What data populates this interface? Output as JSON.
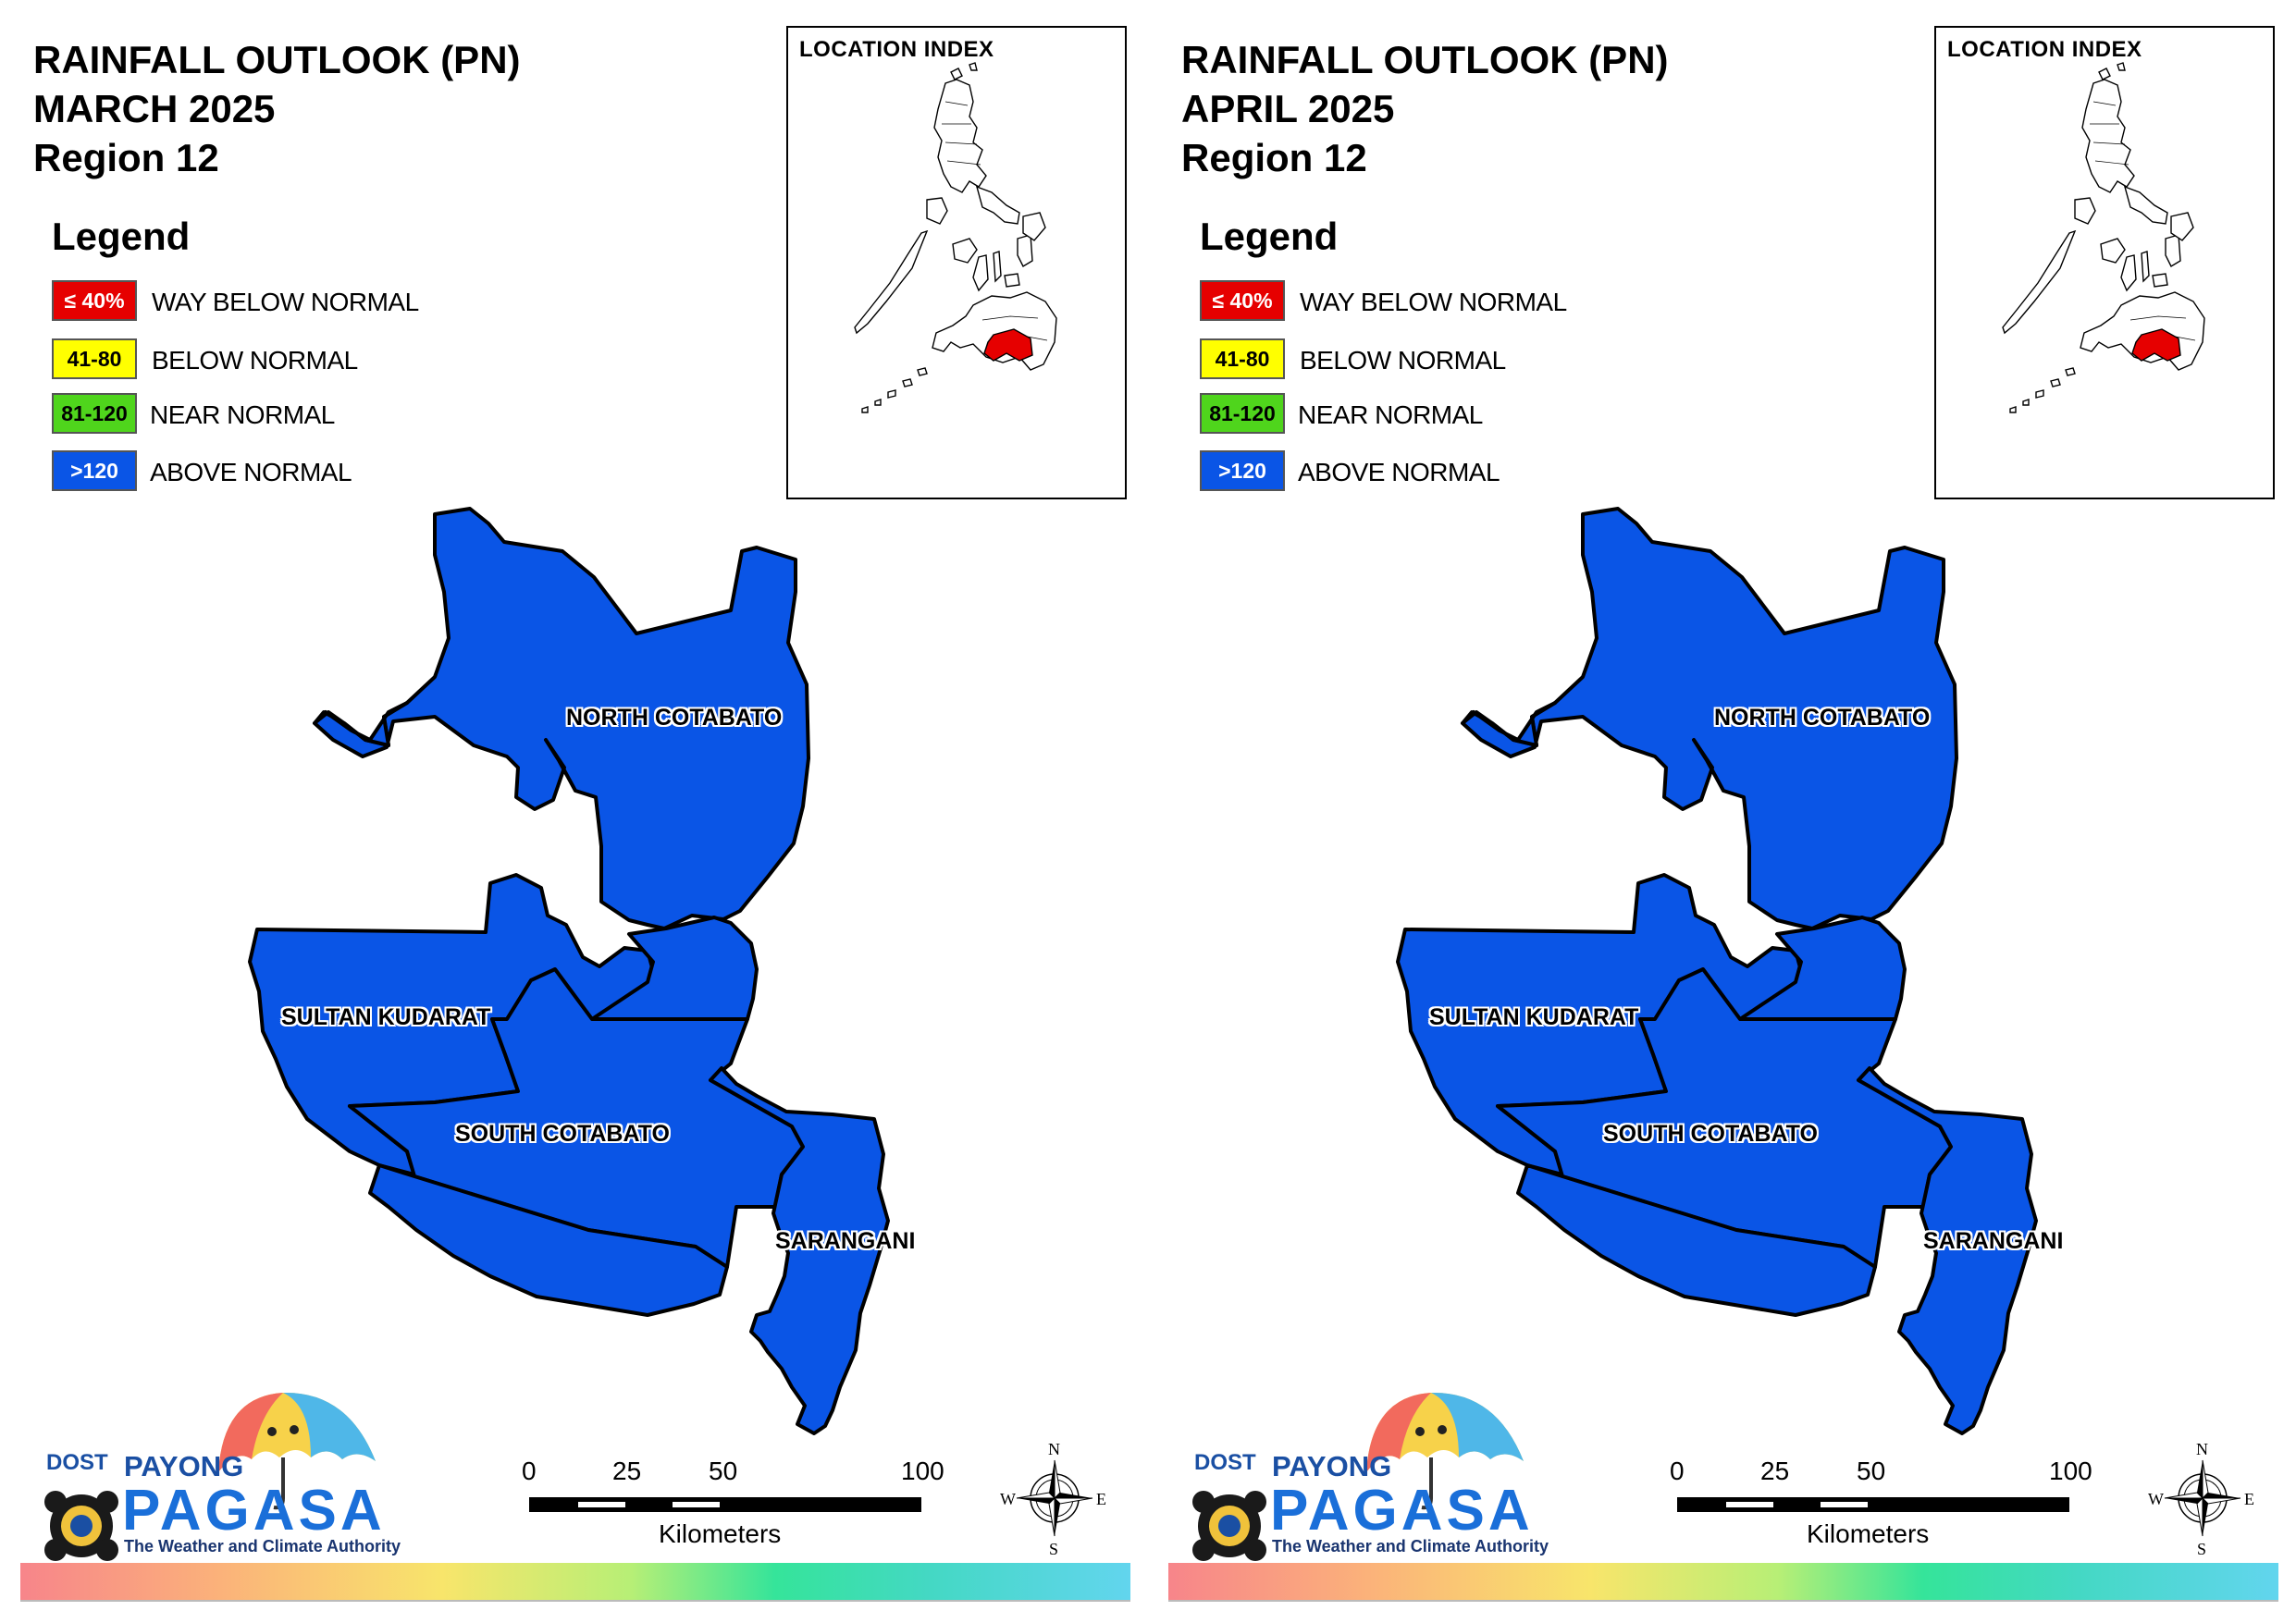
{
  "colors": {
    "way_below": "#e60000",
    "below": "#ffff00",
    "near": "#4fd51c",
    "above": "#0a55e6",
    "province_fill": "#0a55e6",
    "inset_highlight": "#e60000"
  },
  "legend": {
    "heading": "Legend",
    "items": [
      {
        "code": "≤ 40%",
        "label": "WAY BELOW NORMAL",
        "color": "#e60000",
        "text_color": "#ffffff"
      },
      {
        "code": "41-80",
        "label": "BELOW NORMAL",
        "color": "#ffff00",
        "text_color": "#000000"
      },
      {
        "code": "81-120",
        "label": "NEAR NORMAL",
        "color": "#4fd51c",
        "text_color": "#000000"
      },
      {
        "code": ">120",
        "label": "ABOVE NORMAL",
        "color": "#0a55e6",
        "text_color": "#ffffff"
      }
    ]
  },
  "inset": {
    "title": "LOCATION INDEX"
  },
  "provinces": {
    "north_cotabato": "NORTH COTABATO",
    "sultan_kudarat": "SULTAN KUDARAT",
    "south_cotabato": "SOUTH COTABATO",
    "sarangani": "SARANGANI"
  },
  "scale": {
    "ticks": [
      "0",
      "25",
      "50",
      "100"
    ],
    "unit": "Kilometers"
  },
  "compass": {
    "n": "N",
    "e": "E",
    "s": "S",
    "w": "W"
  },
  "logo": {
    "dost": "DOST",
    "payong": "PAYONG",
    "pagasa": "PAGASA",
    "tagline": "The Weather and Climate Authority"
  },
  "maps": [
    {
      "title_line1": "RAINFALL OUTLOOK (PN)",
      "title_line2": "MARCH 2025",
      "title_line3": "Region 12",
      "north_cotabato": "above",
      "sultan_kudarat": "above",
      "south_cotabato": "above",
      "sarangani": "above"
    },
    {
      "title_line1": "RAINFALL OUTLOOK (PN)",
      "title_line2": "APRIL 2025",
      "title_line3": "Region 12",
      "north_cotabato": "above",
      "sultan_kudarat": "above",
      "south_cotabato": "above",
      "sarangani": "above"
    }
  ]
}
